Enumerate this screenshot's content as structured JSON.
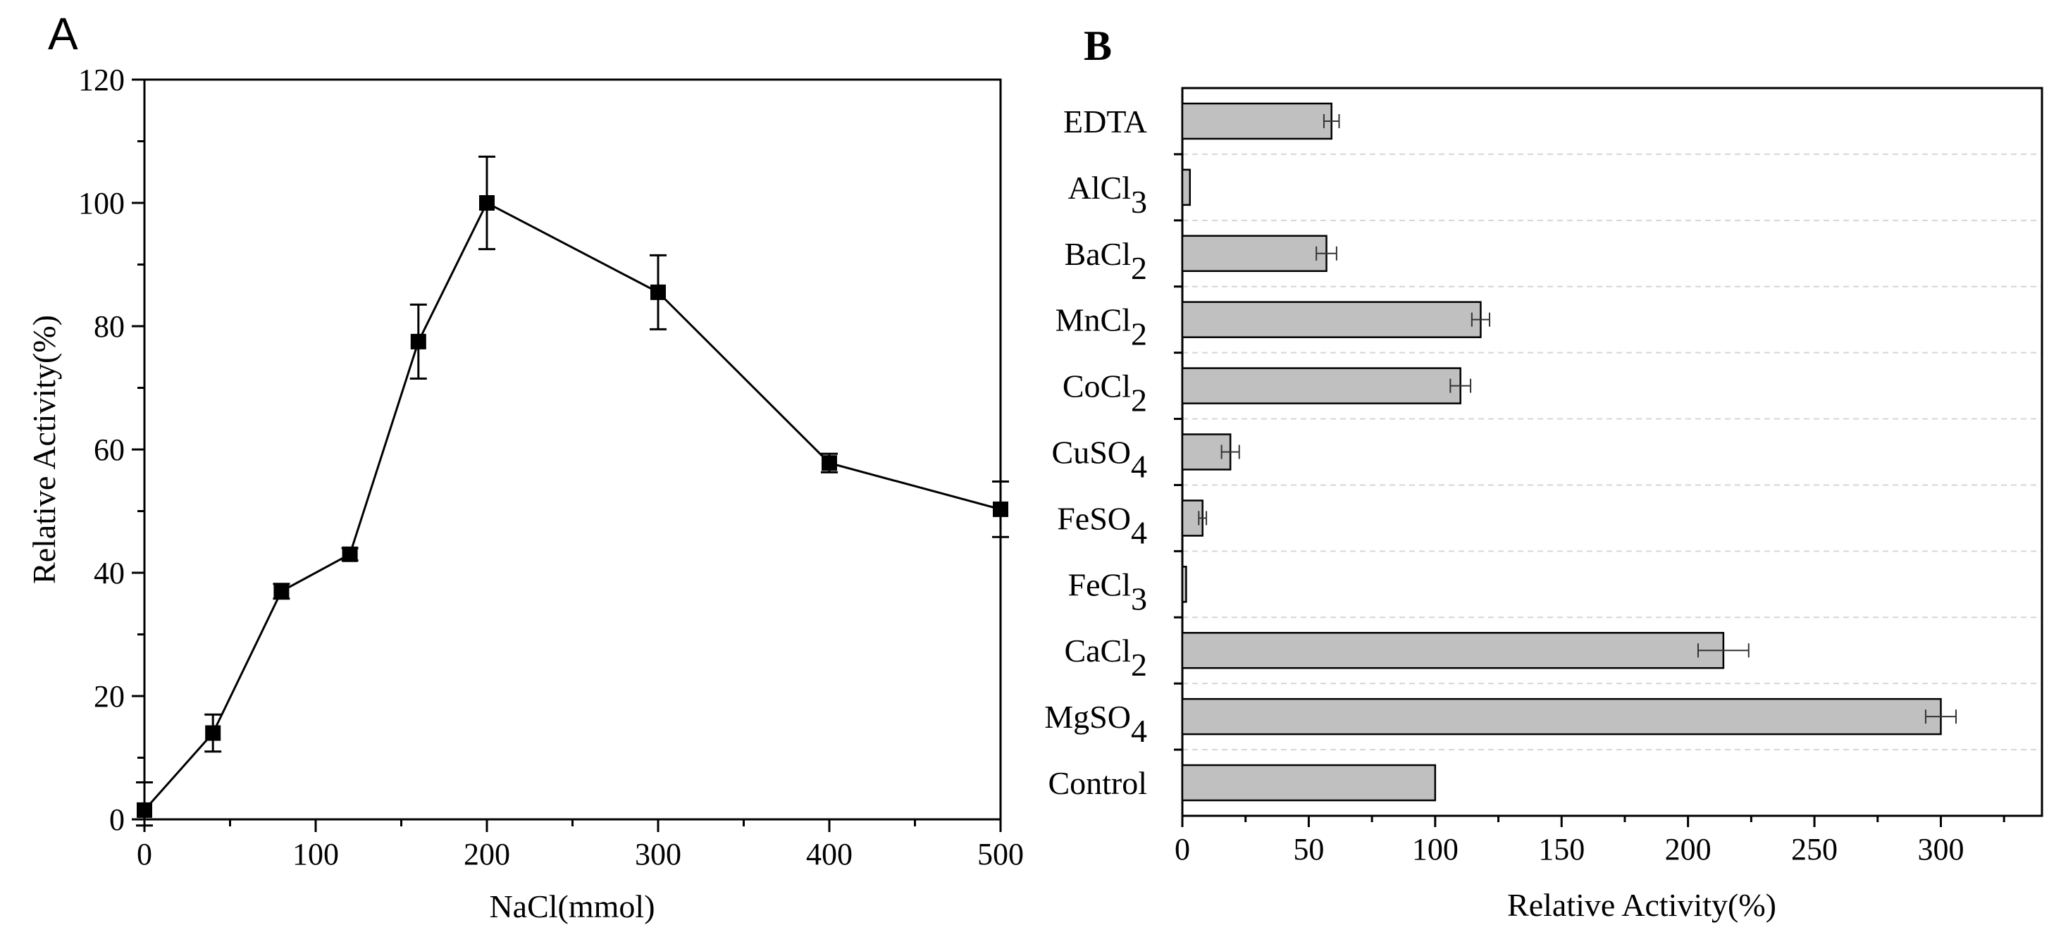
{
  "chart_data": [
    {
      "panel_label": "A",
      "type": "line",
      "xlabel": "NaCl(mmol)",
      "ylabel": "Relative Activity(%)",
      "xlim": [
        0,
        500
      ],
      "ylim": [
        0,
        120
      ],
      "x_ticks": [
        "0",
        "100",
        "200",
        "300",
        "400",
        "500"
      ],
      "y_ticks": [
        "0",
        "20",
        "40",
        "60",
        "80",
        "100",
        "120"
      ],
      "series": [
        {
          "name": "Relative Activity",
          "x": [
            0,
            40,
            80,
            120,
            160,
            200,
            300,
            400,
            500
          ],
          "y": [
            1.5,
            14,
            37,
            43,
            77.5,
            100,
            85.5,
            57.8,
            50.3
          ],
          "error": [
            4.5,
            3,
            1.2,
            1,
            6,
            7.5,
            6,
            1.5,
            4.5
          ]
        }
      ]
    },
    {
      "panel_label": "B",
      "type": "bar",
      "orientation": "horizontal",
      "xlabel": "Relative Activity(%)",
      "xlim": [
        0,
        340
      ],
      "x_ticks": [
        "0",
        "50",
        "100",
        "150",
        "200",
        "250",
        "300"
      ],
      "categories": [
        {
          "base": "EDTA",
          "sub": ""
        },
        {
          "base": "AlCl",
          "sub": "3"
        },
        {
          "base": "BaCl",
          "sub": "2"
        },
        {
          "base": "MnCl",
          "sub": "2"
        },
        {
          "base": "CoCl",
          "sub": "2"
        },
        {
          "base": "CuSO",
          "sub": "4"
        },
        {
          "base": "FeSO",
          "sub": "4"
        },
        {
          "base": "FeCl",
          "sub": "3"
        },
        {
          "base": "CaCl",
          "sub": "2"
        },
        {
          "base": "MgSO",
          "sub": "4"
        },
        {
          "base": "Control",
          "sub": ""
        }
      ],
      "values": [
        59,
        3,
        57,
        118,
        110,
        19,
        8,
        1.5,
        214,
        300,
        100
      ],
      "errors": [
        3,
        0,
        4,
        3.5,
        4,
        3.5,
        1.5,
        0,
        10,
        6,
        0
      ],
      "bar_color": "#c0c0c0",
      "grid": "horizontal dashed"
    }
  ]
}
